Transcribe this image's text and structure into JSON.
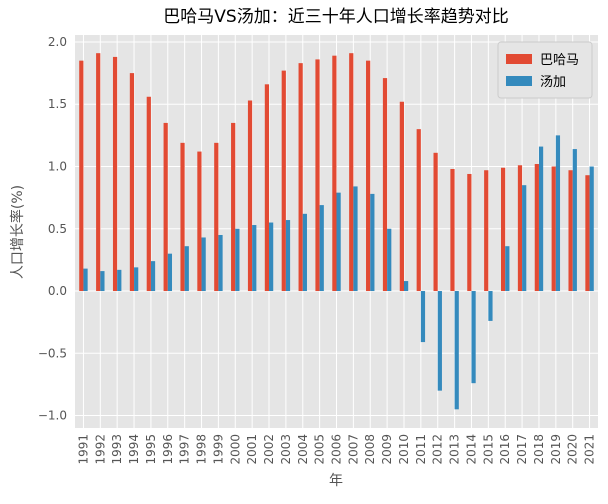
{
  "chart_data": {
    "type": "bar",
    "title": "巴哈马VS汤加：近三十年人口增长率趋势对比",
    "xlabel": "年",
    "ylabel": "人口增长率(%)",
    "categories": [
      "1991",
      "1992",
      "1993",
      "1994",
      "1995",
      "1996",
      "1997",
      "1998",
      "1999",
      "2000",
      "2001",
      "2002",
      "2003",
      "2004",
      "2005",
      "2006",
      "2007",
      "2008",
      "2009",
      "2010",
      "2011",
      "2012",
      "2013",
      "2014",
      "2015",
      "2016",
      "2017",
      "2018",
      "2019",
      "2020",
      "2021"
    ],
    "series": [
      {
        "name": "巴哈马",
        "color": "#E24A33",
        "values": [
          1.85,
          1.91,
          1.88,
          1.75,
          1.56,
          1.35,
          1.19,
          1.12,
          1.19,
          1.35,
          1.53,
          1.66,
          1.77,
          1.83,
          1.86,
          1.89,
          1.91,
          1.85,
          1.71,
          1.52,
          1.3,
          1.11,
          0.98,
          0.94,
          0.97,
          0.99,
          1.01,
          1.02,
          1.0,
          0.97,
          0.93
        ]
      },
      {
        "name": "汤加",
        "color": "#348ABD",
        "values": [
          0.18,
          0.16,
          0.17,
          0.19,
          0.24,
          0.3,
          0.36,
          0.43,
          0.45,
          0.5,
          0.53,
          0.55,
          0.57,
          0.62,
          0.69,
          0.79,
          0.84,
          0.78,
          0.5,
          0.08,
          -0.41,
          -0.8,
          -0.95,
          -0.74,
          -0.24,
          0.36,
          0.85,
          1.16,
          1.25,
          1.14,
          1.0
        ]
      }
    ],
    "ylim": [
      -1.1,
      2.056
    ],
    "yticks": [
      {
        "value": -1,
        "label": "−1.0"
      },
      {
        "value": -0.5,
        "label": "−0.5"
      },
      {
        "value": 0,
        "label": "0.0"
      },
      {
        "value": 0.5,
        "label": "0.5"
      },
      {
        "value": 1,
        "label": "1.0"
      },
      {
        "value": 1.5,
        "label": "1.5"
      },
      {
        "value": 2,
        "label": "2.0"
      }
    ],
    "grid": true,
    "legend": "upper right"
  }
}
